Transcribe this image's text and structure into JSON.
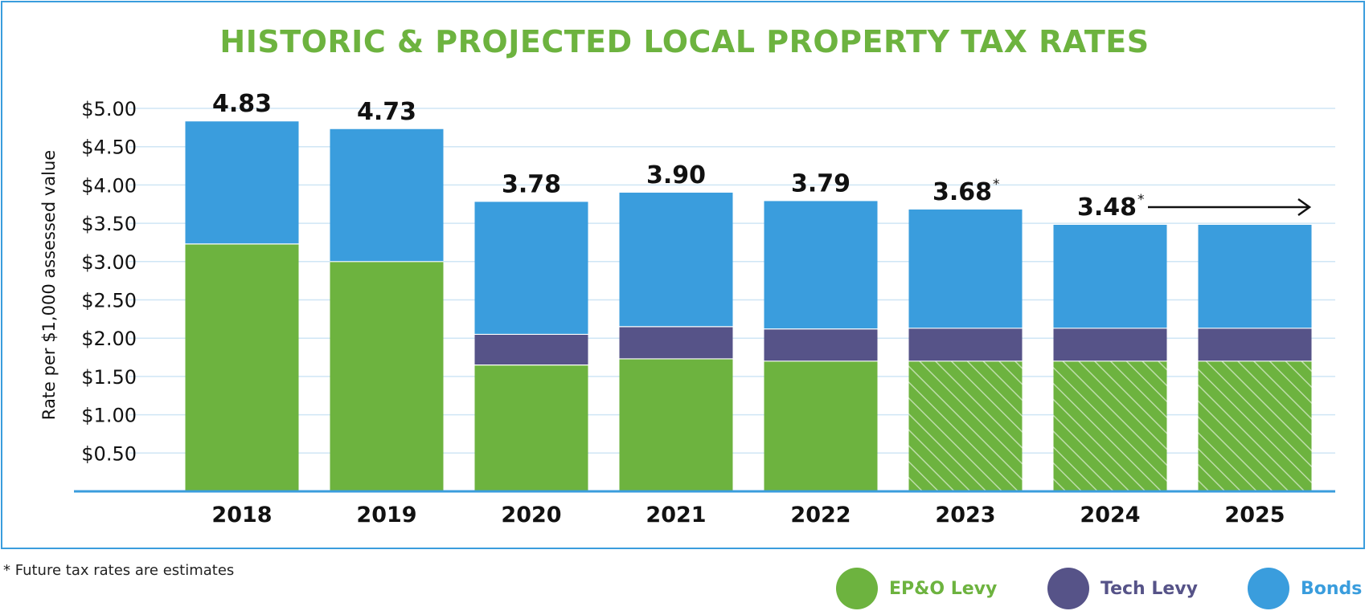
{
  "chart_data": {
    "type": "bar",
    "stacked": true,
    "title": "HISTORIC & PROJECTED LOCAL PROPERTY TAX RATES",
    "ylabel": "Rate per $1,000 assessed value",
    "xlabel": "",
    "ylim": [
      0,
      5.0
    ],
    "yticks": [
      0.5,
      1.0,
      1.5,
      2.0,
      2.5,
      3.0,
      3.5,
      4.0,
      4.5,
      5.0
    ],
    "ytick_labels": [
      "$0.50",
      "$1.00",
      "$1.50",
      "$2.00",
      "$2.50",
      "$3.00",
      "$3.50",
      "$4.00",
      "$4.50",
      "$5.00"
    ],
    "grid": true,
    "categories": [
      "2018",
      "2019",
      "2020",
      "2021",
      "2022",
      "2023",
      "2024",
      "2025"
    ],
    "estimated": [
      false,
      false,
      false,
      false,
      false,
      true,
      true,
      true
    ],
    "series": [
      {
        "name": "EP&O Levy",
        "color": "#6db33f",
        "values": [
          3.23,
          3.0,
          1.65,
          1.73,
          1.7,
          1.7,
          1.7,
          1.7
        ]
      },
      {
        "name": "Tech Levy",
        "color": "#565388",
        "values": [
          0,
          0,
          0.4,
          0.42,
          0.42,
          0.43,
          0.43,
          0.43
        ]
      },
      {
        "name": "Bonds",
        "color": "#3a9ddd",
        "values": [
          1.6,
          1.73,
          1.73,
          1.75,
          1.67,
          1.55,
          1.35,
          1.35
        ]
      }
    ],
    "totals": [
      {
        "value": "4.83",
        "mark": ""
      },
      {
        "value": "4.73",
        "mark": ""
      },
      {
        "value": "3.78",
        "mark": ""
      },
      {
        "value": "3.90",
        "mark": ""
      },
      {
        "value": "3.79",
        "mark": ""
      },
      {
        "value": "3.68",
        "mark": "*"
      },
      {
        "value": "3.48",
        "mark": "*"
      },
      null
    ],
    "annotation": "arrow from 2024 total continuing to 2025",
    "footnote": "* Future tax rates are estimates",
    "legend": [
      {
        "label": "EP&O Levy",
        "color": "#6db33f"
      },
      {
        "label": "Tech Levy",
        "color": "#565388"
      },
      {
        "label": "Bonds",
        "color": "#3a9ddd"
      }
    ]
  }
}
